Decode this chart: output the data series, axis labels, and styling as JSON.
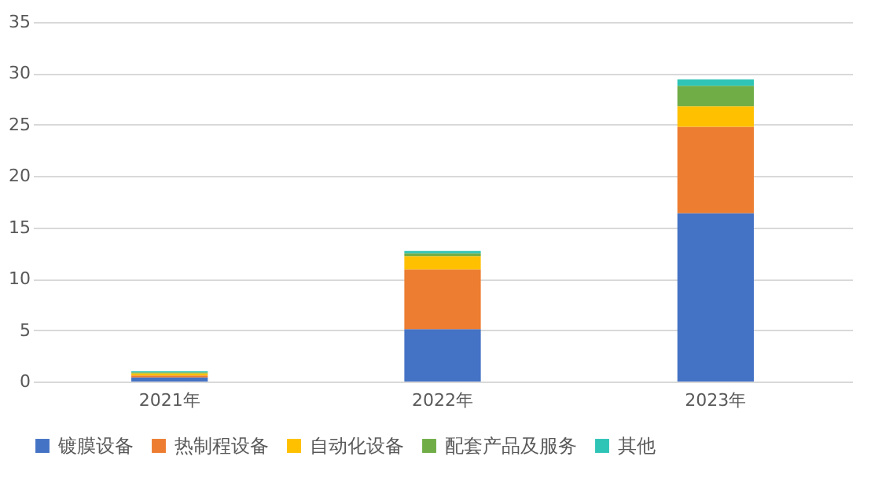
{
  "chart_data": {
    "type": "bar",
    "stacked": true,
    "categories": [
      "2021年",
      "2022年",
      "2023年"
    ],
    "series": [
      {
        "name": "镀膜设备",
        "color": "#4472c4",
        "values": [
          0.4,
          5.1,
          16.4
        ]
      },
      {
        "name": "热制程设备",
        "color": "#ed7d31",
        "values": [
          0.2,
          5.8,
          8.4
        ]
      },
      {
        "name": "自动化设备",
        "color": "#ffc000",
        "values": [
          0.2,
          1.3,
          2.0
        ]
      },
      {
        "name": "配套产品及服务",
        "color": "#70ad47",
        "values": [
          0.1,
          0.3,
          2.0
        ]
      },
      {
        "name": "其他",
        "color": "#2ec4b6",
        "values": [
          0.1,
          0.2,
          0.6
        ]
      }
    ],
    "ylim": [
      0,
      35
    ],
    "yticks": [
      0,
      5,
      10,
      15,
      20,
      25,
      30,
      35
    ],
    "grid": "y",
    "legend": "bottom"
  }
}
